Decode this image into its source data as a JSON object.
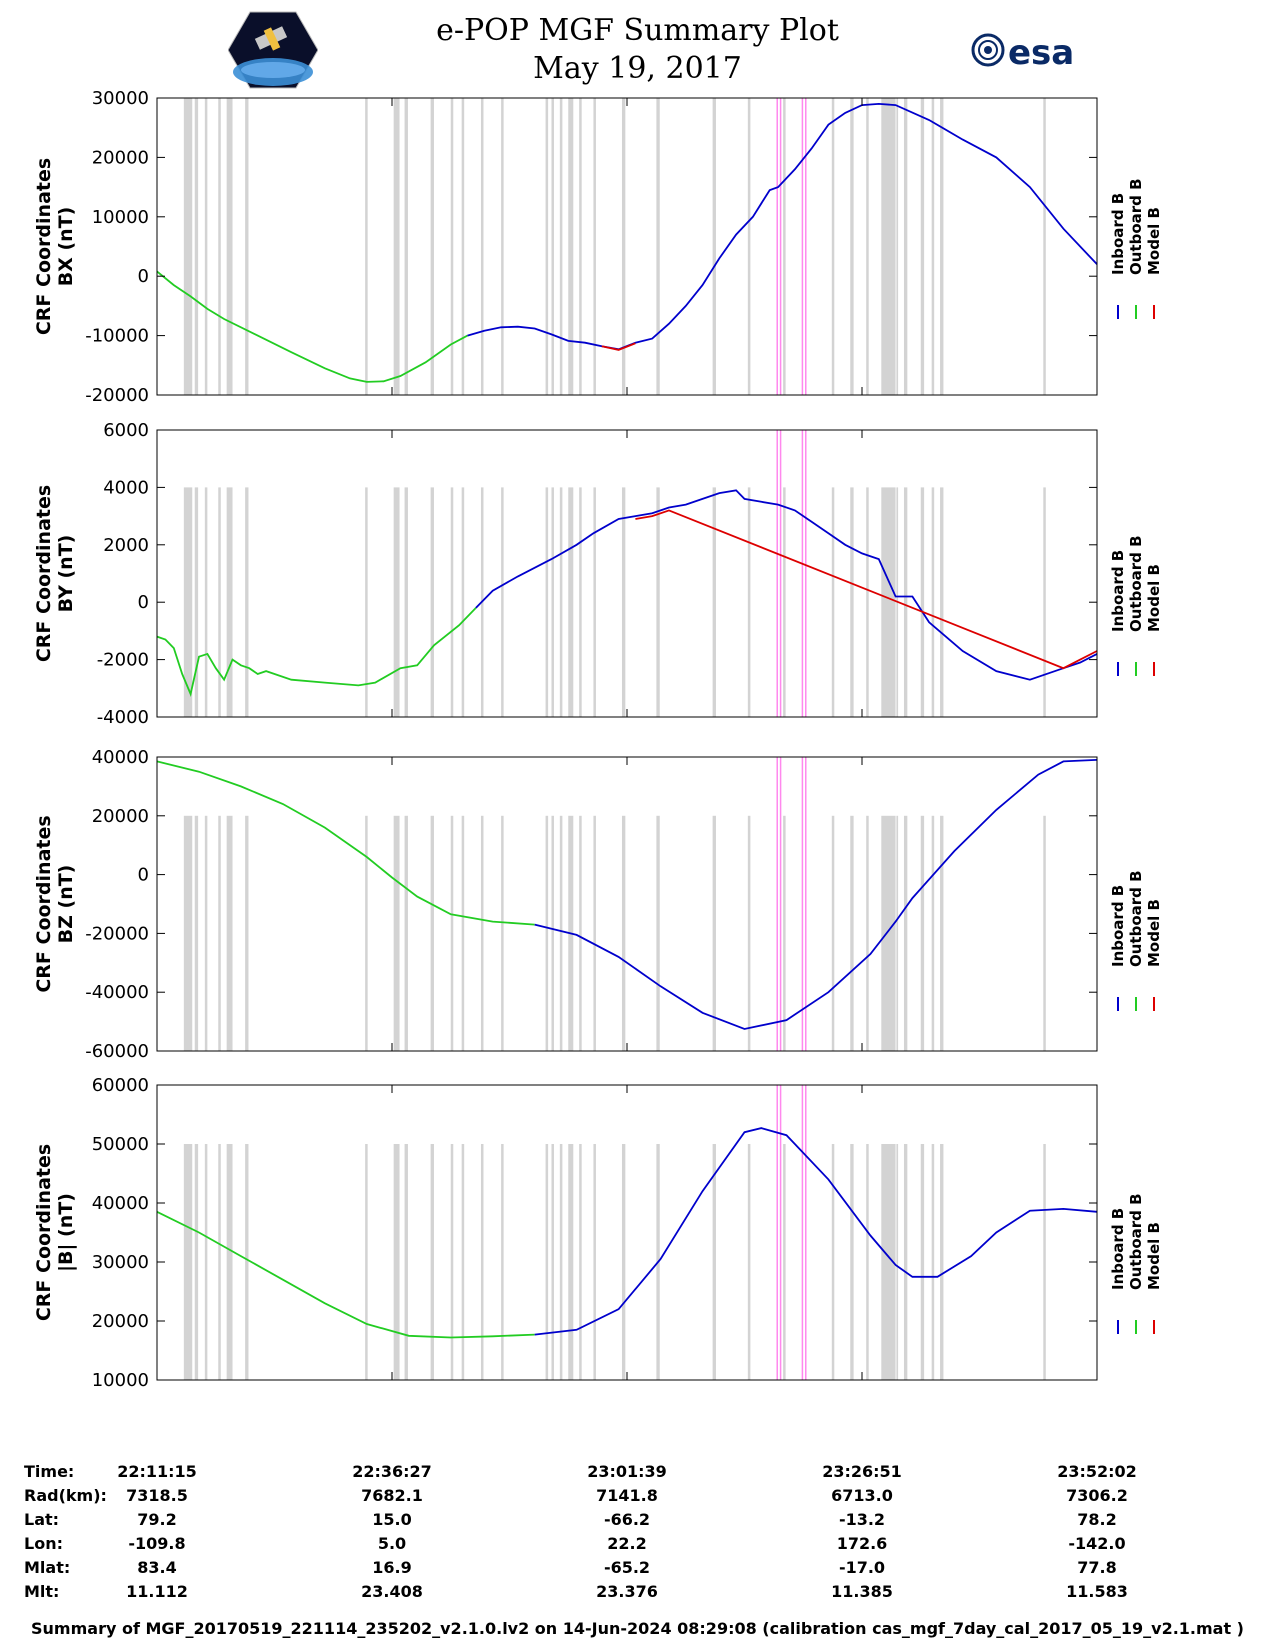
{
  "header": {
    "title": "e-POP MGF Summary Plot",
    "date": "May 19, 2017",
    "esa_logo_text": "esa"
  },
  "colors": {
    "inboard": "#0000cc",
    "outboard": "#22cc22",
    "model": "#dd0000",
    "gap_shading": "#d3d3d3",
    "event_marker": "#ff88ee"
  },
  "chart_data": [
    {
      "type": "line",
      "ylabel_line1": "CRF Coordinates",
      "ylabel_line2": "BX (nT)",
      "ylim": [
        -20000,
        30000
      ],
      "yticks": [
        30000,
        20000,
        10000,
        0,
        -10000,
        -20000
      ],
      "xlim_min": [
        0,
        100
      ],
      "legend": [
        "Inboard B",
        "Outboard B",
        "Model B"
      ],
      "series": [
        {
          "name": "Outboard B",
          "points": [
            [
              0,
              800
            ],
            [
              2,
              -1500
            ],
            [
              4,
              -3400
            ],
            [
              6,
              -5500
            ],
            [
              8,
              -7200
            ],
            [
              12,
              -10000
            ],
            [
              16,
              -12800
            ],
            [
              20,
              -15500
            ],
            [
              23,
              -17200
            ],
            [
              25,
              -17800
            ],
            [
              27,
              -17700
            ],
            [
              29,
              -16800
            ],
            [
              32,
              -14500
            ],
            [
              35,
              -11500
            ],
            [
              37,
              -10000
            ]
          ]
        },
        {
          "name": "Inboard B",
          "points": [
            [
              37,
              -10000
            ],
            [
              39,
              -9200
            ],
            [
              41,
              -8600
            ],
            [
              43,
              -8500
            ],
            [
              45,
              -8800
            ],
            [
              47,
              -9800
            ],
            [
              49,
              -10900
            ],
            [
              51,
              -11200
            ],
            [
              53,
              -11800
            ],
            [
              55,
              -12300
            ],
            [
              57,
              -11200
            ],
            [
              59,
              -10500
            ],
            [
              61,
              -8000
            ],
            [
              63,
              -5000
            ],
            [
              65,
              -1500
            ],
            [
              67,
              3000
            ],
            [
              69,
              7000
            ],
            [
              71,
              10000
            ],
            [
              73,
              14500
            ],
            [
              74,
              15000
            ],
            [
              76,
              18000
            ],
            [
              78,
              21500
            ],
            [
              80,
              25500
            ],
            [
              82,
              27500
            ],
            [
              84,
              28800
            ],
            [
              86,
              29000
            ],
            [
              88,
              28800
            ],
            [
              92,
              26300
            ],
            [
              96,
              23000
            ],
            [
              100,
              20000
            ],
            [
              104,
              15000
            ],
            [
              108,
              8000
            ],
            [
              112,
              2000
            ]
          ]
        },
        {
          "name": "Model B",
          "points": [
            [
              53,
              -11800
            ],
            [
              55,
              -12400
            ],
            [
              57,
              -11300
            ]
          ]
        }
      ]
    },
    {
      "type": "line",
      "ylabel_line1": "CRF Coordinates",
      "ylabel_line2": "BY (nT)",
      "ylim": [
        -4000,
        6000
      ],
      "yticks": [
        6000,
        4000,
        2000,
        0,
        -2000,
        -4000
      ],
      "legend": [
        "Inboard B",
        "Outboard B",
        "Model B"
      ],
      "series": [
        {
          "name": "Outboard B",
          "points": [
            [
              0,
              -1200
            ],
            [
              1,
              -1300
            ],
            [
              2,
              -1600
            ],
            [
              3,
              -2500
            ],
            [
              4,
              -3200
            ],
            [
              5,
              -1900
            ],
            [
              6,
              -1800
            ],
            [
              7,
              -2300
            ],
            [
              8,
              -2700
            ],
            [
              9,
              -2000
            ],
            [
              10,
              -2200
            ],
            [
              11,
              -2300
            ],
            [
              12,
              -2500
            ],
            [
              13,
              -2400
            ],
            [
              16,
              -2700
            ],
            [
              20,
              -2800
            ],
            [
              24,
              -2900
            ],
            [
              26,
              -2800
            ],
            [
              29,
              -2300
            ],
            [
              31,
              -2200
            ],
            [
              33,
              -1500
            ],
            [
              36,
              -800
            ],
            [
              38,
              -200
            ]
          ]
        },
        {
          "name": "Inboard B",
          "points": [
            [
              38,
              -200
            ],
            [
              40,
              400
            ],
            [
              43,
              900
            ],
            [
              47,
              1500
            ],
            [
              50,
              2000
            ],
            [
              52,
              2400
            ],
            [
              55,
              2900
            ],
            [
              57,
              3000
            ],
            [
              59,
              3100
            ],
            [
              61,
              3300
            ],
            [
              63,
              3400
            ],
            [
              65,
              3600
            ],
            [
              67,
              3800
            ],
            [
              69,
              3900
            ],
            [
              70,
              3600
            ],
            [
              72,
              3500
            ],
            [
              74,
              3400
            ],
            [
              76,
              3200
            ],
            [
              78,
              2800
            ],
            [
              80,
              2400
            ],
            [
              82,
              2000
            ],
            [
              84,
              1700
            ],
            [
              86,
              1500
            ],
            [
              88,
              200
            ],
            [
              90,
              200
            ],
            [
              92,
              -700
            ],
            [
              96,
              -1700
            ],
            [
              100,
              -2400
            ],
            [
              104,
              -2700
            ],
            [
              108,
              -2300
            ],
            [
              110,
              -2100
            ],
            [
              112,
              -1800
            ]
          ]
        },
        {
          "name": "Model B",
          "points": [
            [
              57,
              2900
            ],
            [
              59,
              3000
            ],
            [
              61,
              3200
            ],
            [
              108,
              -2300
            ],
            [
              110,
              -2000
            ],
            [
              112,
              -1700
            ]
          ]
        }
      ]
    },
    {
      "type": "line",
      "ylabel_line1": "CRF Coordinates",
      "ylabel_line2": "BZ (nT)",
      "ylim": [
        -60000,
        40000
      ],
      "yticks": [
        40000,
        20000,
        0,
        -20000,
        -40000,
        -60000
      ],
      "legend": [
        "Inboard B",
        "Outboard B",
        "Model B"
      ],
      "series": [
        {
          "name": "Outboard B",
          "points": [
            [
              0,
              38500
            ],
            [
              5,
              35000
            ],
            [
              10,
              30000
            ],
            [
              15,
              24000
            ],
            [
              20,
              16000
            ],
            [
              25,
              6000
            ],
            [
              28,
              -1000
            ],
            [
              31,
              -7500
            ],
            [
              35,
              -13500
            ],
            [
              40,
              -16000
            ],
            [
              45,
              -17000
            ]
          ]
        },
        {
          "name": "Inboard B",
          "points": [
            [
              45,
              -17000
            ],
            [
              50,
              -20500
            ],
            [
              55,
              -28000
            ],
            [
              60,
              -38000
            ],
            [
              65,
              -47000
            ],
            [
              70,
              -52500
            ],
            [
              75,
              -49500
            ],
            [
              80,
              -40000
            ],
            [
              85,
              -27000
            ],
            [
              88,
              -16000
            ],
            [
              90,
              -8000
            ],
            [
              95,
              8000
            ],
            [
              100,
              22000
            ],
            [
              105,
              34000
            ],
            [
              108,
              38500
            ],
            [
              112,
              39000
            ]
          ]
        }
      ]
    },
    {
      "type": "line",
      "ylabel_line1": "CRF Coordinates",
      "ylabel_line2": "|B| (nT)",
      "ylim": [
        10000,
        60000
      ],
      "yticks": [
        60000,
        50000,
        40000,
        30000,
        20000,
        10000
      ],
      "legend": [
        "Inboard B",
        "Outboard B",
        "Model B"
      ],
      "series": [
        {
          "name": "Outboard B",
          "points": [
            [
              0,
              38500
            ],
            [
              5,
              35000
            ],
            [
              10,
              31000
            ],
            [
              15,
              27000
            ],
            [
              20,
              23000
            ],
            [
              25,
              19500
            ],
            [
              30,
              17500
            ],
            [
              35,
              17200
            ],
            [
              40,
              17400
            ],
            [
              45,
              17700
            ]
          ]
        },
        {
          "name": "Inboard B",
          "points": [
            [
              45,
              17700
            ],
            [
              50,
              18500
            ],
            [
              55,
              22000
            ],
            [
              60,
              30500
            ],
            [
              65,
              42000
            ],
            [
              70,
              52000
            ],
            [
              72,
              52700
            ],
            [
              75,
              51500
            ],
            [
              80,
              44000
            ],
            [
              85,
              34500
            ],
            [
              88,
              29500
            ],
            [
              90,
              27500
            ],
            [
              93,
              27500
            ],
            [
              97,
              31000
            ],
            [
              100,
              35000
            ],
            [
              104,
              38700
            ],
            [
              108,
              39000
            ],
            [
              112,
              38500
            ]
          ]
        }
      ]
    }
  ],
  "x_axis": {
    "time_labels": [
      "22:11:15",
      "22:36:27",
      "23:01:39",
      "23:26:51",
      "23:52:02"
    ]
  },
  "info_table": {
    "rows": [
      {
        "label": "Time:",
        "values": [
          "22:11:15",
          "22:36:27",
          "23:01:39",
          "23:26:51",
          "23:52:02"
        ]
      },
      {
        "label": "Rad(km):",
        "values": [
          "7318.5",
          "7682.1",
          "7141.8",
          "6713.0",
          "7306.2"
        ]
      },
      {
        "label": "Lat:",
        "values": [
          "79.2",
          "15.0",
          "-66.2",
          "-13.2",
          "78.2"
        ]
      },
      {
        "label": "Lon:",
        "values": [
          "-109.8",
          "5.0",
          "22.2",
          "172.6",
          "-142.0"
        ]
      },
      {
        "label": "Mlat:",
        "values": [
          "83.4",
          "16.9",
          "-65.2",
          "-17.0",
          "77.8"
        ]
      },
      {
        "label": "Mlt:",
        "values": [
          "11.112",
          "23.408",
          "23.376",
          "11.385",
          "11.583"
        ]
      }
    ]
  },
  "footer": "Summary of MGF_20170519_221114_235202_v2.1.0.lv2 on 14-Jun-2024 08:29:08 (calibration cas_mgf_7day_cal_2017_05_19_v2.1.mat )",
  "gap_bands": [
    [
      3.2,
      4.2
    ],
    [
      4.5,
      4.9
    ],
    [
      5.7,
      6.0
    ],
    [
      7.3,
      7.6
    ],
    [
      8.3,
      9.0
    ],
    [
      10.5,
      10.9
    ],
    [
      24.8,
      25.1
    ],
    [
      28.2,
      28.9
    ],
    [
      29.5,
      29.9
    ],
    [
      32.6,
      33.0
    ],
    [
      35.0,
      35.3
    ],
    [
      36.3,
      36.6
    ],
    [
      38.6,
      38.9
    ],
    [
      41.0,
      41.3
    ],
    [
      46.3,
      46.6
    ],
    [
      47.0,
      47.3
    ],
    [
      48.0,
      48.3
    ],
    [
      49.0,
      49.6
    ],
    [
      50.3,
      50.6
    ],
    [
      52.0,
      52.3
    ],
    [
      55.4,
      55.8
    ],
    [
      59.5,
      59.9
    ],
    [
      66.2,
      66.6
    ],
    [
      70.4,
      70.7
    ],
    [
      74.6,
      74.9
    ],
    [
      80.4,
      80.7
    ],
    [
      82.6,
      83.0
    ],
    [
      84.5,
      84.8
    ],
    [
      86.3,
      88.0
    ],
    [
      88.1,
      88.3
    ],
    [
      89.0,
      89.4
    ],
    [
      91.0,
      91.4
    ],
    [
      92.3,
      92.6
    ],
    [
      93.3,
      93.7
    ],
    [
      105.6,
      105.9
    ]
  ],
  "event_markers": [
    73.9,
    74.3,
    76.9,
    77.3
  ]
}
